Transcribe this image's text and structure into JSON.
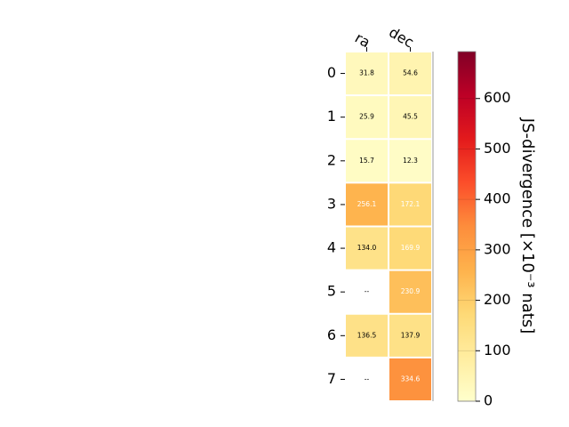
{
  "chart_data": {
    "type": "heatmap",
    "columns": [
      "ra",
      "dec"
    ],
    "rows": [
      "0",
      "1",
      "2",
      "3",
      "4",
      "5",
      "6",
      "7"
    ],
    "values": [
      [
        31.8,
        54.6
      ],
      [
        25.9,
        45.5
      ],
      [
        15.7,
        12.3
      ],
      [
        256.1,
        172.1
      ],
      [
        134.0,
        169.9
      ],
      [
        null,
        230.9
      ],
      [
        136.5,
        137.9
      ],
      [
        null,
        334.6
      ]
    ],
    "labels": [
      [
        "31.8",
        "54.6"
      ],
      [
        "25.9",
        "45.5"
      ],
      [
        "15.7",
        "12.3"
      ],
      [
        "256.1",
        "172.1"
      ],
      [
        "134.0",
        "169.9"
      ],
      [
        "--",
        "230.9"
      ],
      [
        "136.5",
        "137.9"
      ],
      [
        "--",
        "334.6"
      ]
    ],
    "colorbar": {
      "label": "JS-divergence [×10⁻³ nats]",
      "ticks": [
        "0",
        "100",
        "200",
        "300",
        "400",
        "500",
        "600"
      ],
      "range": [
        0,
        693
      ],
      "colormap": "YlOrRd",
      "colors": [
        "#ffffcc",
        "#ffeda0",
        "#fed976",
        "#feb24c",
        "#fd8d3c",
        "#fc4e2a",
        "#e31a1c",
        "#bd0026",
        "#800026"
      ]
    }
  }
}
